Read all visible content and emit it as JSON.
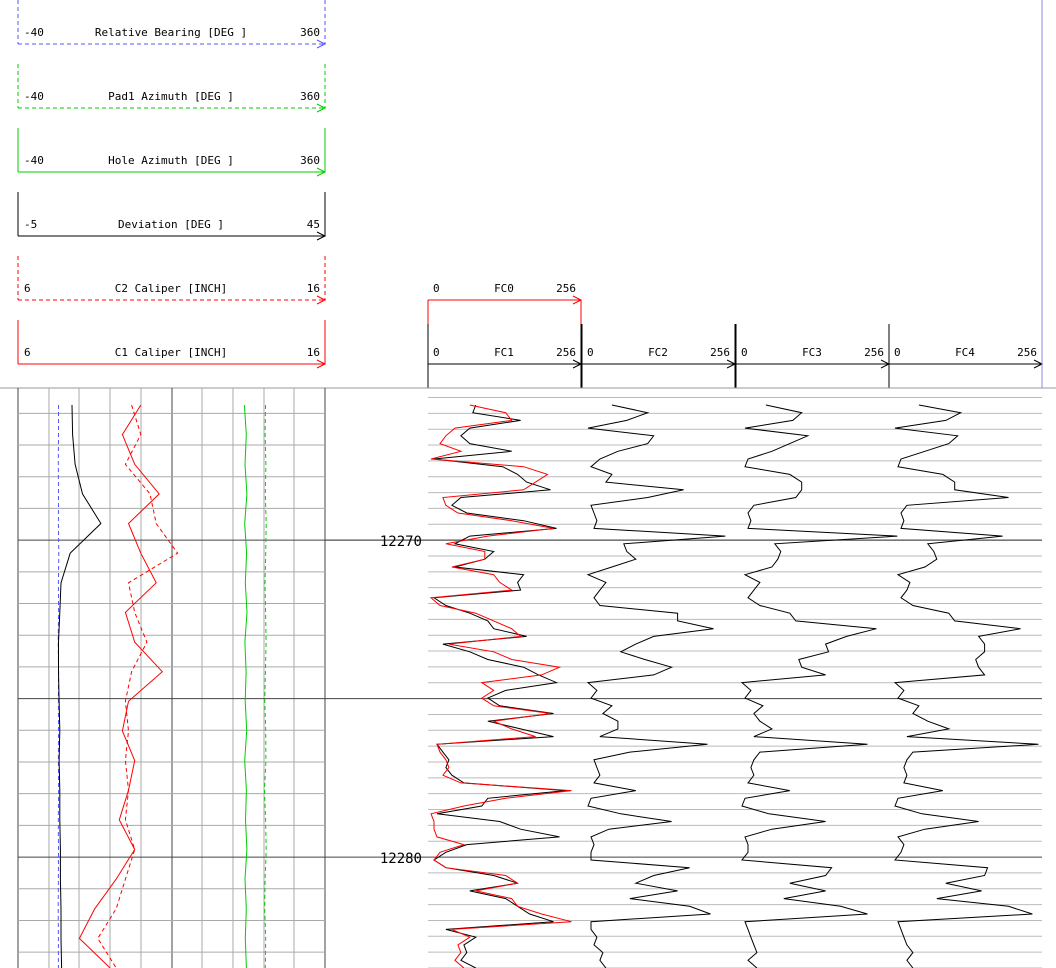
{
  "colors": {
    "black": "#000000",
    "red": "#ff0000",
    "green": "#00cc00",
    "blue": "#5555ff",
    "grid_major": "#444444",
    "grid_minor": "#aaaaaa",
    "grid_depth": "#bbbbbb"
  },
  "chart_data": {
    "type": "line",
    "y_axis": "depth",
    "depth_range": [
      12265.2,
      12283.5
    ],
    "depth_labels": [
      "12270",
      "12280"
    ],
    "depth_label_values": [
      12270,
      12280
    ],
    "track1": {
      "curves": [
        {
          "name": "Relative Bearing [DEG ]",
          "min": "-40",
          "max": "360",
          "lo": -40,
          "hi": 360,
          "color": "#5555ff",
          "dash": "4,3",
          "values": [
            12.8,
            12.8,
            12.5,
            12.8,
            12.6,
            13.1,
            12.7,
            12.9,
            12.4,
            12.9,
            12.6,
            12.8,
            12.7,
            12.9,
            12.5,
            12.8,
            12.6,
            12.4,
            12.7,
            12.6
          ]
        },
        {
          "name": "Pad1 Azimuth [DEG ]",
          "min": "-40",
          "max": "360",
          "lo": -40,
          "hi": 360,
          "color": "#00cc00",
          "dash": "4,3",
          "values": [
            282.5,
            282.0,
            283.0,
            282.2,
            283.4,
            282.8,
            281.8,
            282.6,
            283.2,
            282.4,
            281.6,
            282.8,
            283.0,
            281.2,
            282.6,
            283.4,
            282.0,
            281.4,
            282.8,
            282.2
          ]
        },
        {
          "name": "Hole Azimuth [DEG ]",
          "min": "-40",
          "max": "360",
          "lo": -40,
          "hi": 360,
          "color": "#00cc00",
          "dash": "",
          "values": [
            255.0,
            257.5,
            255.8,
            258.2,
            255.4,
            257.8,
            256.2,
            258.4,
            255.6,
            257.2,
            256.0,
            258.0,
            255.4,
            257.6,
            256.4,
            258.2,
            255.8,
            257.4,
            256.2,
            257.6
          ]
        },
        {
          "name": "Deviation [DEG ]",
          "min": "-5",
          "max": "45",
          "lo": -5,
          "hi": 45,
          "color": "#000000",
          "dash": "",
          "values": [
            3.8,
            3.9,
            4.3,
            5.5,
            8.5,
            3.5,
            2.0,
            1.8,
            1.6,
            1.6,
            1.7,
            1.8,
            1.7,
            1.8,
            1.8,
            1.9,
            1.9,
            2.0,
            2.0,
            2.1
          ]
        },
        {
          "name": "C2 Caliper [INCH]",
          "min": "6",
          "max": "16",
          "lo": 6,
          "hi": 16,
          "color": "#ff0000",
          "dash": "4,3",
          "values": [
            9.7,
            10.0,
            9.5,
            10.3,
            10.5,
            11.2,
            9.6,
            9.8,
            10.2,
            9.7,
            9.5,
            9.6,
            9.5,
            9.6,
            9.5,
            9.8,
            9.5,
            9.2,
            8.6,
            9.2
          ]
        },
        {
          "name": "C1 Caliper [INCH]",
          "min": "6",
          "max": "16",
          "lo": 6,
          "hi": 16,
          "color": "#ff0000",
          "dash": "",
          "values": [
            10.0,
            9.4,
            9.8,
            10.6,
            9.6,
            10.0,
            10.5,
            9.5,
            9.8,
            10.7,
            9.6,
            9.4,
            9.8,
            9.6,
            9.3,
            9.8,
            9.2,
            8.5,
            8.0,
            9.0
          ]
        }
      ]
    },
    "fc_tracks": [
      {
        "name": "FC1",
        "min": "0",
        "max": "256",
        "lo": 0,
        "hi": 256,
        "color": "#000000",
        "overlay": "FC0",
        "values": [
          80,
          75,
          155,
          70,
          55,
          70,
          140,
          10,
          125,
          150,
          165,
          205,
          55,
          40,
          65,
          160,
          215,
          70,
          45,
          110,
          95,
          45,
          160,
          150,
          155,
          10,
          30,
          70,
          100,
          110,
          165,
          25,
          70,
          100,
          160,
          185,
          215,
          130,
          100,
          120,
          210,
          100,
          155,
          210,
          15,
          25,
          35,
          30,
          40,
          60,
          230,
          100,
          90,
          15,
          120,
          155,
          220,
          65,
          30,
          10,
          30,
          110,
          150,
          70,
          130,
          150,
          170,
          210,
          30,
          80,
          60,
          65,
          55,
          80
        ]
      },
      {
        "name": "FC2",
        "min": "0",
        "max": "256",
        "lo": 0,
        "hi": 256,
        "color": "#000000",
        "values": [
          50,
          110,
          75,
          10,
          120,
          110,
          60,
          30,
          15,
          50,
          40,
          170,
          110,
          15,
          20,
          25,
          20,
          240,
          70,
          75,
          90,
          50,
          10,
          40,
          30,
          20,
          30,
          160,
          160,
          220,
          120,
          90,
          65,
          105,
          150,
          120,
          10,
          25,
          15,
          50,
          35,
          60,
          60,
          30,
          210,
          80,
          20,
          25,
          30,
          20,
          90,
          15,
          10,
          65,
          150,
          45,
          15,
          20,
          15,
          15,
          180,
          120,
          90,
          160,
          80,
          180,
          215,
          15,
          15,
          25,
          20,
          35,
          30,
          40
        ]
      },
      {
        "name": "FC3",
        "min": "0",
        "max": "256",
        "lo": 0,
        "hi": 256,
        "color": "#000000",
        "values": [
          50,
          110,
          95,
          15,
          120,
          90,
          60,
          20,
          15,
          90,
          110,
          110,
          100,
          30,
          20,
          25,
          20,
          270,
          65,
          75,
          70,
          60,
          15,
          40,
          30,
          20,
          40,
          90,
          100,
          235,
          185,
          150,
          155,
          105,
          110,
          150,
          10,
          25,
          15,
          45,
          30,
          40,
          60,
          30,
          220,
          40,
          30,
          25,
          30,
          20,
          90,
          15,
          10,
          55,
          150,
          60,
          15,
          20,
          20,
          10,
          160,
          150,
          90,
          150,
          80,
          175,
          220,
          15,
          20,
          25,
          30,
          35,
          20,
          35
        ]
      },
      {
        "name": "FC4",
        "min": "0",
        "max": "256",
        "lo": 0,
        "hi": 256,
        "color": "#000000",
        "values": [
          50,
          120,
          95,
          10,
          115,
          100,
          60,
          20,
          15,
          90,
          110,
          110,
          200,
          30,
          20,
          25,
          20,
          190,
          65,
          75,
          80,
          60,
          15,
          35,
          30,
          20,
          40,
          100,
          110,
          220,
          150,
          160,
          160,
          145,
          150,
          160,
          10,
          25,
          15,
          50,
          40,
          65,
          100,
          30,
          250,
          40,
          30,
          25,
          30,
          25,
          90,
          15,
          10,
          55,
          150,
          60,
          15,
          25,
          20,
          10,
          165,
          160,
          95,
          155,
          80,
          200,
          240,
          15,
          20,
          25,
          30,
          40,
          30,
          40
        ]
      }
    ],
    "fc0_overlay": {
      "name": "FC0",
      "min": "0",
      "max": "256",
      "lo": 0,
      "hi": 256,
      "color": "#ff0000",
      "values": [
        70,
        130,
        140,
        45,
        30,
        20,
        55,
        5,
        160,
        200,
        180,
        160,
        25,
        30,
        50,
        140,
        210,
        100,
        30,
        95,
        95,
        40,
        110,
        120,
        140,
        5,
        20,
        80,
        110,
        140,
        155,
        35,
        110,
        140,
        220,
        190,
        90,
        110,
        90,
        110,
        205,
        110,
        140,
        180,
        15,
        20,
        30,
        35,
        25,
        55,
        240,
        130,
        60,
        5,
        10,
        10,
        15,
        60,
        20,
        10,
        30,
        130,
        150,
        80,
        140,
        150,
        190,
        240,
        40,
        70,
        50,
        55,
        45,
        60
      ]
    }
  }
}
